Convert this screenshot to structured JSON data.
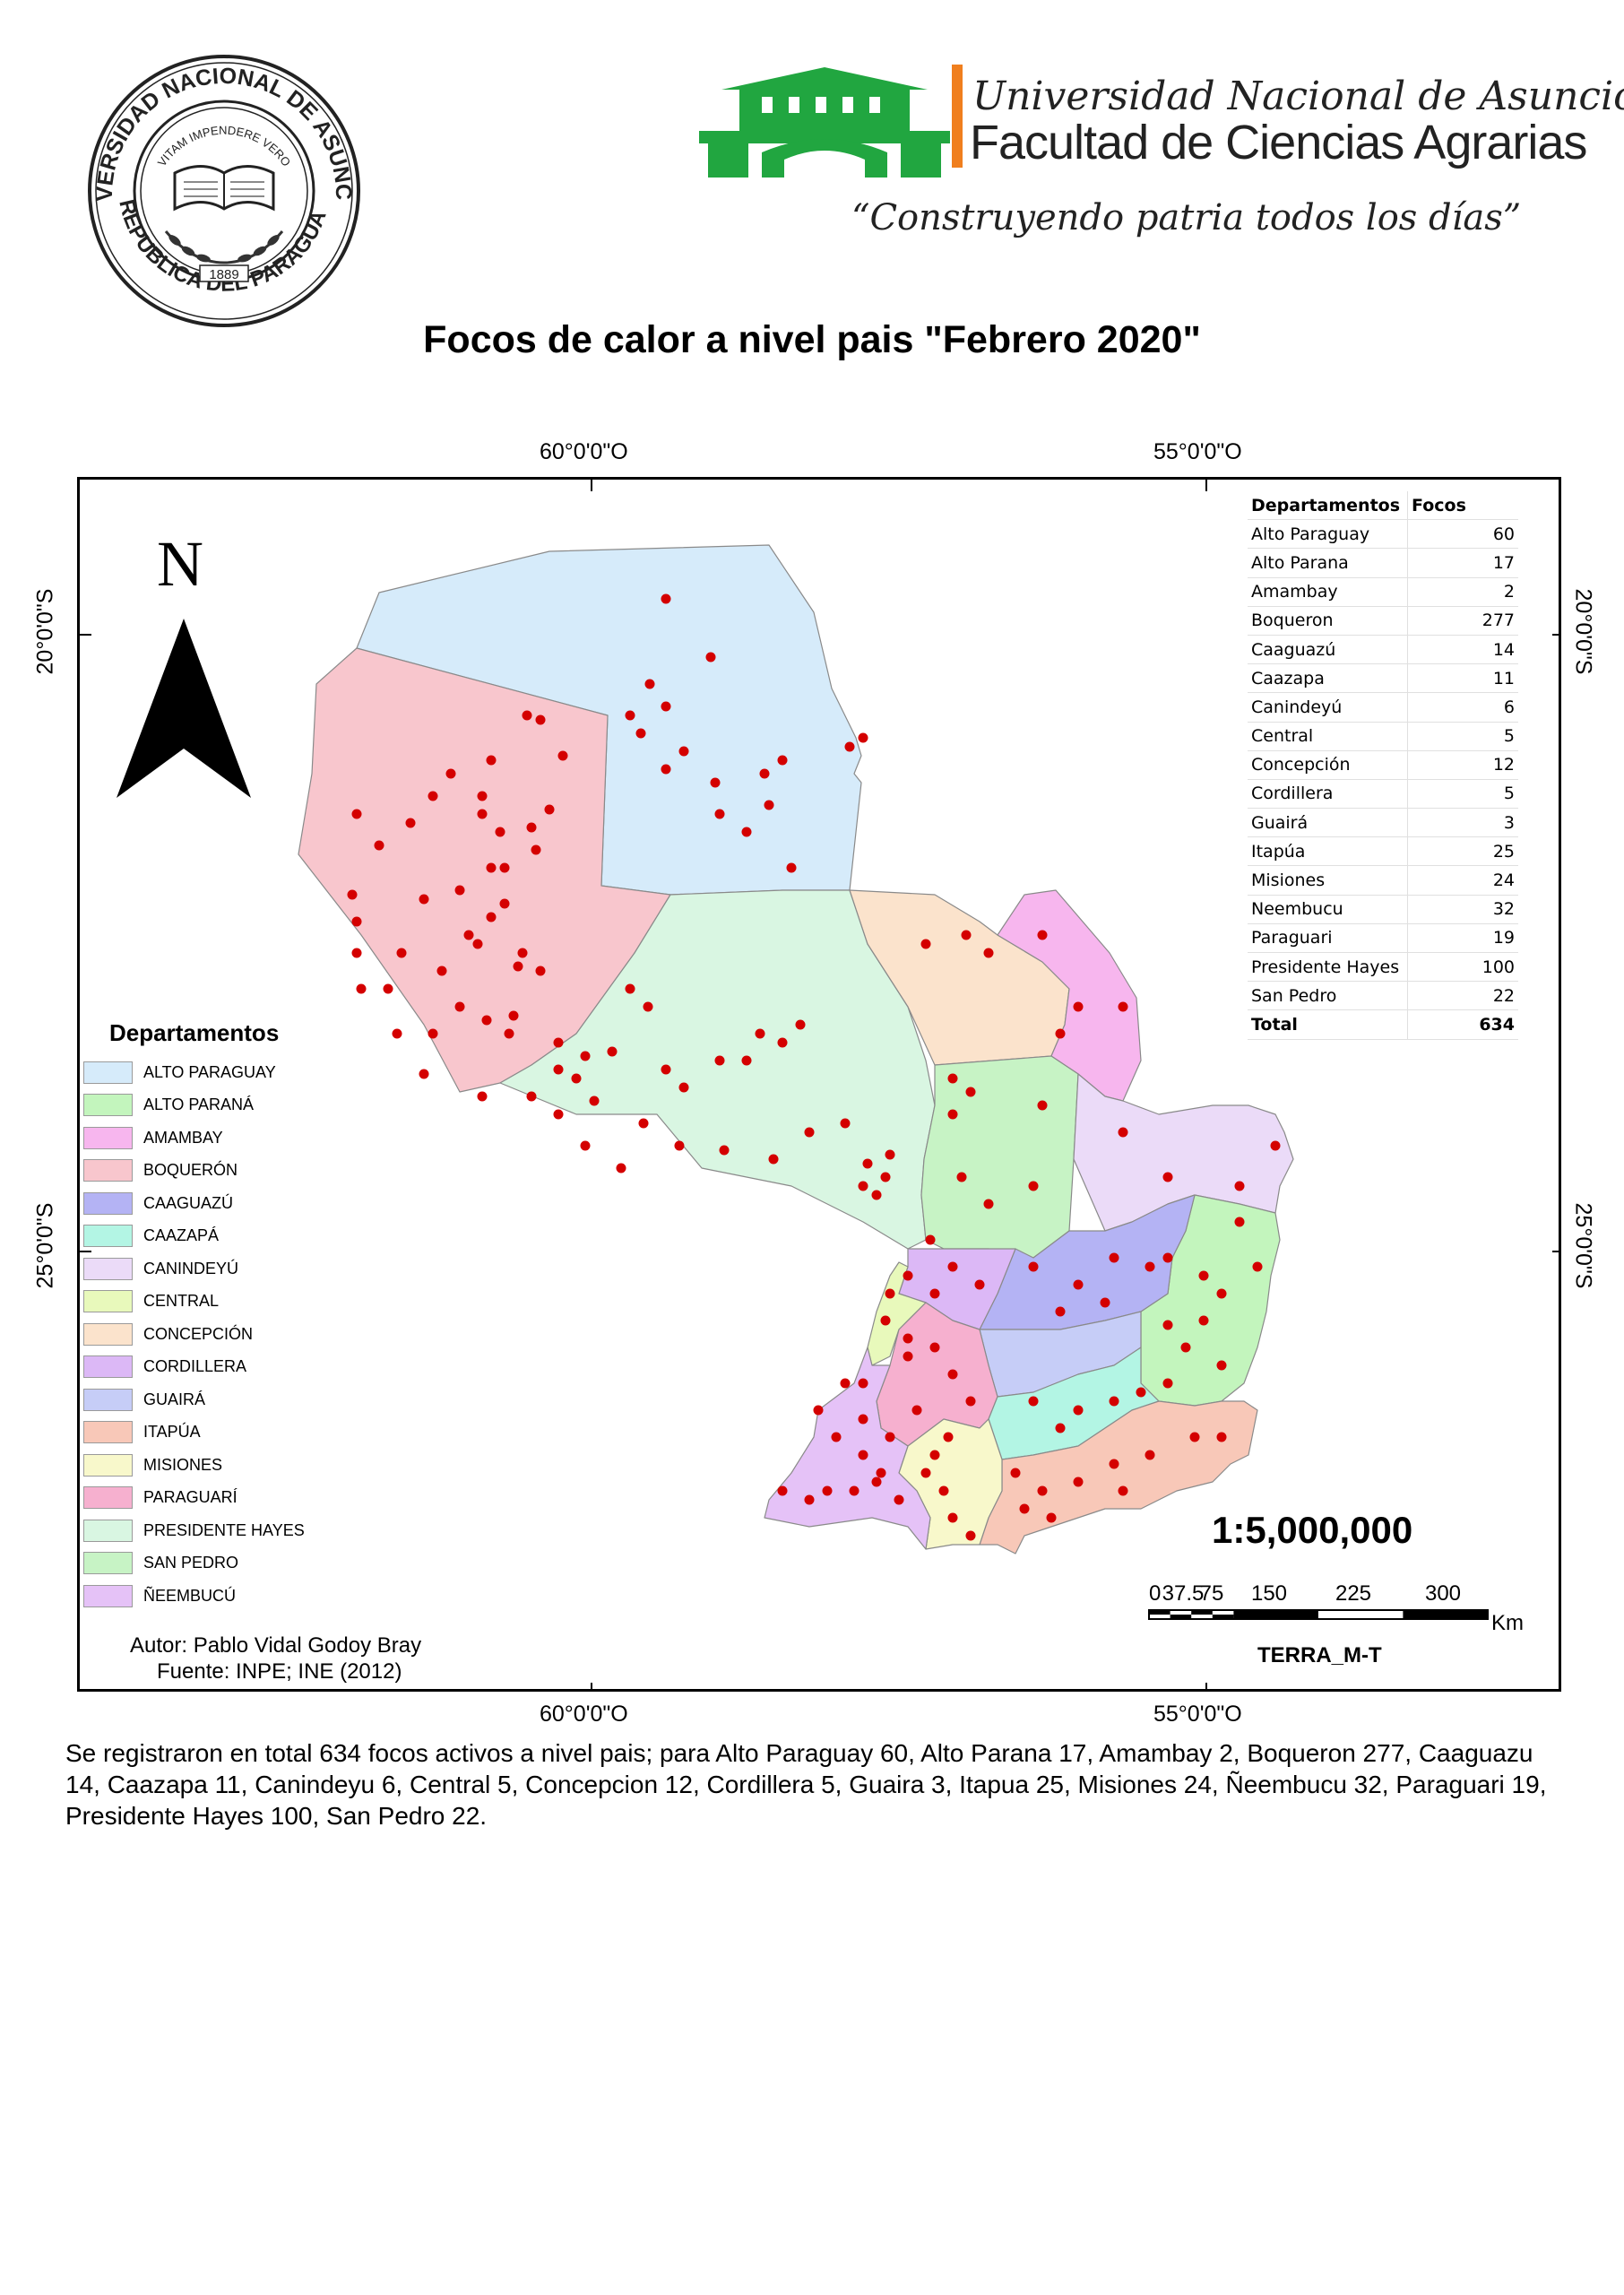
{
  "header": {
    "seal_text_top": "UNIVERSIDAD NACIONAL DE ASUNCION",
    "seal_motto": "VITAM IMPENDERE VERO",
    "seal_year": "1889",
    "seal_text_bottom": "REPUBLICA DEL PARAGUAY",
    "university": "Universidad Nacional de Asunción",
    "faculty": "Facultad de Ciencias Agrarias",
    "slogan": "“Construyendo patria todos los días”"
  },
  "map": {
    "title": "Focos de calor a nivel pais \"Febrero 2020\"",
    "lon_top_left": "60°0'0\"O",
    "lon_top_right": "55°0'0\"O",
    "lon_bottom_left": "60°0'0\"O",
    "lon_bottom_right": "55°0'0\"O",
    "lat_upper_left": "20°0'0\"S",
    "lat_lower_left": "25°0'0\"S",
    "lat_upper_right": "20°0'0\"S",
    "lat_lower_right": "25°0'0\"S",
    "north_letter": "N",
    "scale_ratio": "1:5,000,000",
    "scale_ticks": [
      "0",
      "37.5",
      "75",
      "150",
      "225",
      "300"
    ],
    "scale_unit": "Km",
    "sensor": "TERRA_M-T",
    "author": "Autor: Pablo Vidal Godoy Bray",
    "source": "Fuente: INPE; INE (2012)",
    "fire_color": "#d40000"
  },
  "legend": {
    "title": "Departamentos",
    "items": [
      {
        "label": "ALTO PARAGUAY",
        "color": "#d6ebfa"
      },
      {
        "label": "ALTO PARANÁ",
        "color": "#c3f5bd"
      },
      {
        "label": "AMAMBAY",
        "color": "#f7b6ee"
      },
      {
        "label": "BOQUERÓN",
        "color": "#f8c6cd"
      },
      {
        "label": "CAAGUAZÚ",
        "color": "#b4b3f4"
      },
      {
        "label": "CAAZAPÁ",
        "color": "#b3f5e4"
      },
      {
        "label": "CANINDEYÚ",
        "color": "#ebdbf8"
      },
      {
        "label": "CENTRAL",
        "color": "#e8f9bb"
      },
      {
        "label": "CONCEPCIÓN",
        "color": "#fbe3cc"
      },
      {
        "label": "CORDILLERA",
        "color": "#dcb8f6"
      },
      {
        "label": "GUAIRÁ",
        "color": "#c6cdf7"
      },
      {
        "label": "ITAPÚA",
        "color": "#f8c8b8"
      },
      {
        "label": "MISIONES",
        "color": "#f8f8cb"
      },
      {
        "label": "PARAGUARÍ",
        "color": "#f6b0cf"
      },
      {
        "label": "PRESIDENTE HAYES",
        "color": "#d9f6e2"
      },
      {
        "label": "SAN PEDRO",
        "color": "#c7f3c5"
      },
      {
        "label": "ÑEEMBUCÚ",
        "color": "#e5c2f7"
      }
    ]
  },
  "table": {
    "header_dept": "Departamentos",
    "header_focos": "Focos",
    "rows": [
      {
        "name": "Alto Paraguay",
        "value": "60"
      },
      {
        "name": "Alto Parana",
        "value": "17"
      },
      {
        "name": "Amambay",
        "value": "2"
      },
      {
        "name": "Boqueron",
        "value": "277"
      },
      {
        "name": "Caaguazú",
        "value": "14"
      },
      {
        "name": "Caazapa",
        "value": "11"
      },
      {
        "name": "Canindeyú",
        "value": "6"
      },
      {
        "name": "Central",
        "value": "5"
      },
      {
        "name": "Concepción",
        "value": "12"
      },
      {
        "name": "Cordillera",
        "value": "5"
      },
      {
        "name": "Guairá",
        "value": "3"
      },
      {
        "name": "Itapúa",
        "value": "25"
      },
      {
        "name": "Misiones",
        "value": "24"
      },
      {
        "name": "Neembucu",
        "value": "32"
      },
      {
        "name": "Paraguari",
        "value": "19"
      },
      {
        "name": "Presidente Hayes",
        "value": "100"
      },
      {
        "name": "San Pedro",
        "value": "22"
      }
    ],
    "total_label": "Total",
    "total_value": "634"
  },
  "caption": "Se registraron en total 634  focos activos a nivel pais; para Alto Paraguay 60, Alto Parana 17, Amambay 2, Boqueron 277, Caaguazu 14, Caazapa 11, Canindeyu 6, Central 5, Concepcion 12, Cordillera 5, Guaira 3, Itapua 25, Misiones 24, Ñeembucu 32, Paraguari 19, Presidente Hayes 100, San Pedro 22."
}
